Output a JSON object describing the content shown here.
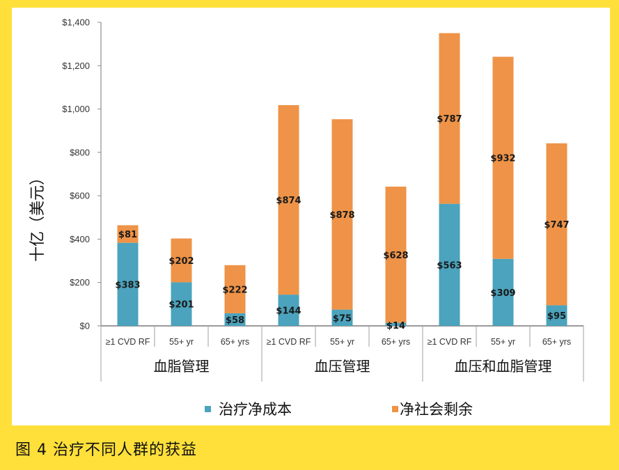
{
  "caption": "图 4 治疗不同人群的获益",
  "chart_data": {
    "type": "bar",
    "stacked": true,
    "title": "",
    "xlabel": "",
    "ylabel": "十亿（美元）",
    "ylim": [
      0,
      1400
    ],
    "yticks": [
      0,
      200,
      400,
      600,
      800,
      1000,
      1200,
      1400
    ],
    "ytick_labels": [
      "$0",
      "$200",
      "$400",
      "$600",
      "$800",
      "$1,000",
      "$1,200",
      "$1,400"
    ],
    "grid": false,
    "legend_position": "bottom",
    "groups": [
      {
        "label": "血脂管理",
        "categories": [
          "≥1 CVD RF",
          "55+ yr",
          "65+ yrs"
        ]
      },
      {
        "label": "血压管理",
        "categories": [
          "≥1 CVD RF",
          "55+ yr",
          "65+ yrs"
        ]
      },
      {
        "label": "血压和血脂管理",
        "categories": [
          "≥1 CVD RF",
          "55+ yr",
          "65+ yrs"
        ]
      }
    ],
    "categories": [
      "≥1 CVD RF",
      "55+ yr",
      "65+ yrs",
      "≥1 CVD RF",
      "55+ yr",
      "65+ yrs",
      "≥1 CVD RF",
      "55+ yr",
      "65+ yrs"
    ],
    "series": [
      {
        "name": "治疗净成本",
        "color": "#4BA3BD",
        "values": [
          383,
          201,
          58,
          144,
          75,
          14,
          563,
          309,
          95
        ],
        "labels": [
          "$383",
          "$201",
          "$58",
          "$144",
          "$75",
          "$14",
          "$563",
          "$309",
          "$95"
        ]
      },
      {
        "name": "净社会剩余",
        "color": "#EE9347",
        "values": [
          81,
          202,
          222,
          874,
          878,
          628,
          787,
          932,
          747
        ],
        "labels": [
          "$81",
          "$202",
          "$222",
          "$874",
          "$878",
          "$628",
          "$787",
          "$932",
          "$747"
        ]
      }
    ]
  }
}
